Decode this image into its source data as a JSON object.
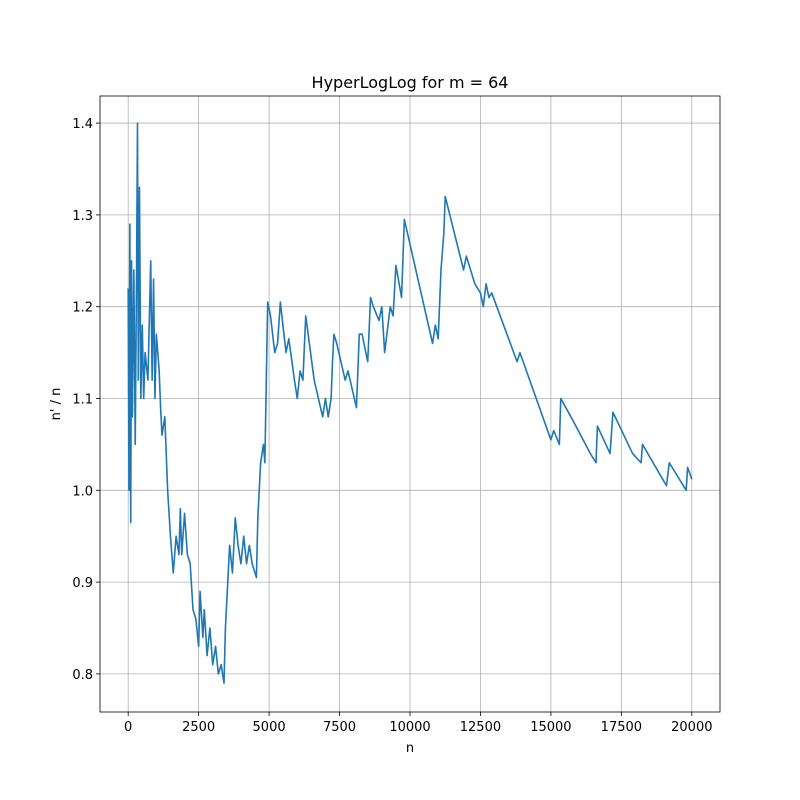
{
  "chart_data": {
    "type": "line",
    "title": "HyperLogLog for m = 64",
    "x_label": "n",
    "y_label": "n' / n",
    "color": "#1f77b4",
    "grid": true,
    "xlim": [
      -1000,
      21000
    ],
    "ylim": [
      0.7585,
      1.4295
    ],
    "xticks": [
      0,
      2500,
      5000,
      7500,
      10000,
      12500,
      15000,
      17500,
      20000
    ],
    "yticks": [
      0.8,
      0.9,
      {
        "value": 1.0,
        "label": "1.0"
      },
      1.1,
      1.2,
      1.3,
      1.4
    ],
    "x": [
      0,
      30,
      60,
      90,
      120,
      150,
      200,
      250,
      300,
      330,
      360,
      400,
      450,
      500,
      550,
      600,
      700,
      800,
      850,
      900,
      950,
      1000,
      1100,
      1150,
      1200,
      1300,
      1400,
      1500,
      1600,
      1700,
      1800,
      1850,
      1900,
      2000,
      2100,
      2200,
      2300,
      2400,
      2500,
      2550,
      2650,
      2700,
      2800,
      2900,
      3000,
      3100,
      3200,
      3300,
      3400,
      3450,
      3500,
      3600,
      3700,
      3800,
      3900,
      4000,
      4100,
      4200,
      4300,
      4400,
      4500,
      4550,
      4600,
      4700,
      4800,
      4850,
      4950,
      5050,
      5200,
      5300,
      5400,
      5600,
      5700,
      5900,
      6000,
      6100,
      6200,
      6300,
      6600,
      6900,
      7000,
      7100,
      7200,
      7250,
      7300,
      7400,
      7700,
      7800,
      8100,
      8200,
      8300,
      8500,
      8600,
      8700,
      8900,
      9000,
      9100,
      9300,
      9400,
      9500,
      9700,
      9800,
      10800,
      10900,
      11000,
      11100,
      11200,
      11250,
      11900,
      12000,
      12300,
      12500,
      12600,
      12700,
      12800,
      12900,
      13800,
      13900,
      15000,
      15100,
      15300,
      15350,
      15800,
      16400,
      16600,
      16650,
      17100,
      17200,
      17900,
      18200,
      18250,
      19100,
      19200,
      19800,
      19850,
      20000
    ],
    "values": [
      1.22,
      1.0,
      1.29,
      0.965,
      1.25,
      1.08,
      1.24,
      1.05,
      1.25,
      1.4,
      1.12,
      1.33,
      1.1,
      1.18,
      1.1,
      1.15,
      1.12,
      1.25,
      1.12,
      1.23,
      1.1,
      1.17,
      1.13,
      1.09,
      1.06,
      1.08,
      1.0,
      0.95,
      0.91,
      0.95,
      0.93,
      0.98,
      0.93,
      0.975,
      0.93,
      0.92,
      0.87,
      0.86,
      0.83,
      0.89,
      0.84,
      0.87,
      0.82,
      0.85,
      0.81,
      0.83,
      0.8,
      0.81,
      0.79,
      0.85,
      0.88,
      0.94,
      0.91,
      0.97,
      0.94,
      0.92,
      0.95,
      0.92,
      0.94,
      0.92,
      0.91,
      0.905,
      0.97,
      1.03,
      1.05,
      1.03,
      1.205,
      1.19,
      1.15,
      1.16,
      1.205,
      1.15,
      1.165,
      1.12,
      1.1,
      1.13,
      1.12,
      1.19,
      1.12,
      1.08,
      1.1,
      1.08,
      1.1,
      1.14,
      1.17,
      1.16,
      1.12,
      1.13,
      1.09,
      1.17,
      1.17,
      1.14,
      1.21,
      1.2,
      1.185,
      1.2,
      1.15,
      1.2,
      1.19,
      1.245,
      1.21,
      1.295,
      1.16,
      1.18,
      1.165,
      1.24,
      1.28,
      1.32,
      1.24,
      1.255,
      1.225,
      1.215,
      1.2,
      1.225,
      1.21,
      1.215,
      1.14,
      1.15,
      1.055,
      1.065,
      1.05,
      1.1,
      1.075,
      1.04,
      1.03,
      1.07,
      1.04,
      1.085,
      1.04,
      1.03,
      1.05,
      1.005,
      1.03,
      1.0,
      1.025,
      1.012
    ]
  }
}
